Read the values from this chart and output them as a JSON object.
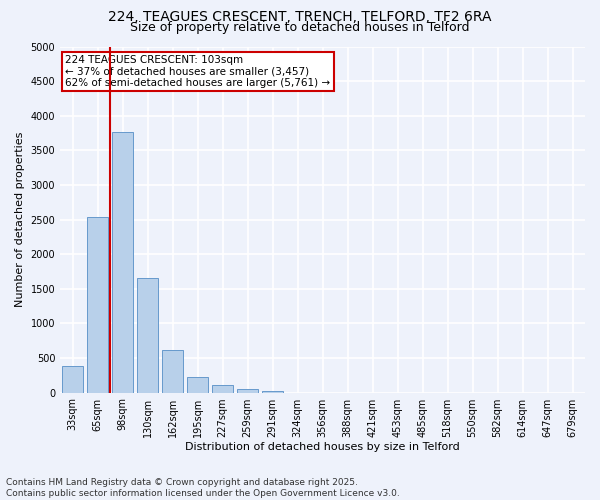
{
  "title_line1": "224, TEAGUES CRESCENT, TRENCH, TELFORD, TF2 6RA",
  "title_line2": "Size of property relative to detached houses in Telford",
  "xlabel": "Distribution of detached houses by size in Telford",
  "ylabel": "Number of detached properties",
  "categories": [
    "33sqm",
    "65sqm",
    "98sqm",
    "130sqm",
    "162sqm",
    "195sqm",
    "227sqm",
    "259sqm",
    "291sqm",
    "324sqm",
    "356sqm",
    "388sqm",
    "421sqm",
    "453sqm",
    "485sqm",
    "518sqm",
    "550sqm",
    "582sqm",
    "614sqm",
    "647sqm",
    "679sqm"
  ],
  "values": [
    380,
    2530,
    3760,
    1650,
    620,
    220,
    105,
    55,
    30,
    0,
    0,
    0,
    0,
    0,
    0,
    0,
    0,
    0,
    0,
    0,
    0
  ],
  "bar_color": "#b8d0ea",
  "bar_edge_color": "#6699cc",
  "vline_x": 1.5,
  "vline_color": "#cc0000",
  "annotation_text": "224 TEAGUES CRESCENT: 103sqm\n← 37% of detached houses are smaller (3,457)\n62% of semi-detached houses are larger (5,761) →",
  "annotation_box_color": "#ffffff",
  "annotation_box_edge_color": "#cc0000",
  "ylim": [
    0,
    5000
  ],
  "yticks": [
    0,
    500,
    1000,
    1500,
    2000,
    2500,
    3000,
    3500,
    4000,
    4500,
    5000
  ],
  "background_color": "#eef2fb",
  "plot_background_color": "#eef2fb",
  "grid_color": "#ffffff",
  "footer_line1": "Contains HM Land Registry data © Crown copyright and database right 2025.",
  "footer_line2": "Contains public sector information licensed under the Open Government Licence v3.0.",
  "title_fontsize": 10,
  "subtitle_fontsize": 9,
  "axis_label_fontsize": 8,
  "tick_fontsize": 7,
  "annotation_fontsize": 7.5,
  "footer_fontsize": 6.5
}
